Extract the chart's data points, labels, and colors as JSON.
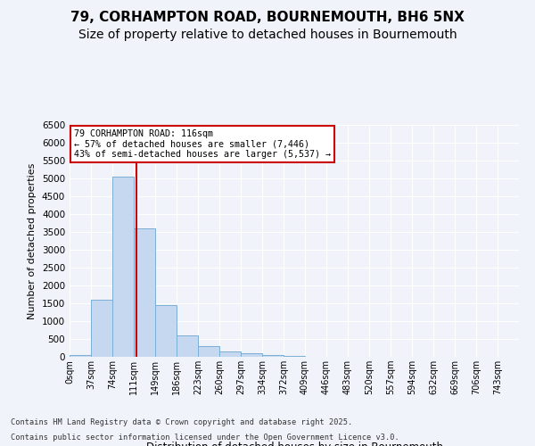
{
  "title_line1": "79, CORHAMPTON ROAD, BOURNEMOUTH, BH6 5NX",
  "title_line2": "Size of property relative to detached houses in Bournemouth",
  "xlabel": "Distribution of detached houses by size in Bournemouth",
  "ylabel": "Number of detached properties",
  "bin_labels": [
    "0sqm",
    "37sqm",
    "74sqm",
    "111sqm",
    "149sqm",
    "186sqm",
    "223sqm",
    "260sqm",
    "297sqm",
    "334sqm",
    "372sqm",
    "409sqm",
    "446sqm",
    "483sqm",
    "520sqm",
    "557sqm",
    "594sqm",
    "632sqm",
    "669sqm",
    "706sqm",
    "743sqm"
  ],
  "bar_values": [
    60,
    1600,
    5050,
    3600,
    1450,
    600,
    300,
    155,
    100,
    50,
    20,
    8,
    5,
    3,
    2,
    1,
    1,
    0,
    0,
    0
  ],
  "bar_color": "#c5d8f0",
  "bar_edge_color": "#7bafd4",
  "property_size": 116,
  "property_label": "79 CORHAMPTON ROAD: 116sqm",
  "annotation_line1": "← 57% of detached houses are smaller (7,446)",
  "annotation_line2": "43% of semi-detached houses are larger (5,537) →",
  "vline_color": "#cc0000",
  "annotation_box_edge": "#cc0000",
  "ylim": [
    0,
    6500
  ],
  "yticks": [
    0,
    500,
    1000,
    1500,
    2000,
    2500,
    3000,
    3500,
    4000,
    4500,
    5000,
    5500,
    6000,
    6500
  ],
  "footnote1": "Contains HM Land Registry data © Crown copyright and database right 2025.",
  "footnote2": "Contains public sector information licensed under the Open Government Licence v3.0.",
  "bg_color": "#f0f4fa",
  "plot_bg_color": "#f0f4fa",
  "title_fontsize": 11,
  "subtitle_fontsize": 10
}
